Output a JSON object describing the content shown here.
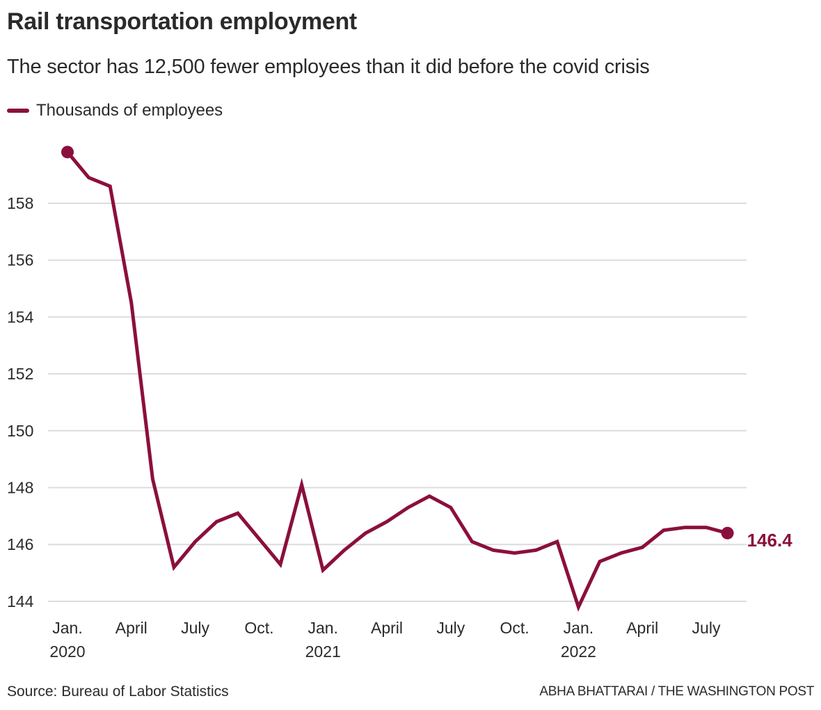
{
  "header": {
    "title": "Rail transportation employment",
    "subtitle": "The sector has 12,500 fewer employees than it did before the covid crisis"
  },
  "legend": {
    "label": "Thousands of employees",
    "color": "#8b0f3d"
  },
  "footer": {
    "source": "Source: Bureau of Labor Statistics",
    "credit": "ABHA BHATTARAI / THE WASHINGTON POST"
  },
  "chart_data": {
    "type": "line",
    "title": "Rail transportation employment",
    "subtitle": "The sector has 12,500 fewer employees than it did before the covid crisis",
    "xlabel": "",
    "ylabel": "Thousands of employees",
    "ylim": [
      143.6,
      160.0
    ],
    "yticks": [
      144,
      146,
      148,
      150,
      152,
      154,
      156,
      158
    ],
    "grid": true,
    "legend_position": "top-left",
    "line_color": "#8b0f3d",
    "x": [
      "2020-01",
      "2020-02",
      "2020-03",
      "2020-04",
      "2020-05",
      "2020-06",
      "2020-07",
      "2020-08",
      "2020-09",
      "2020-10",
      "2020-11",
      "2020-12",
      "2021-01",
      "2021-02",
      "2021-03",
      "2021-04",
      "2021-05",
      "2021-06",
      "2021-07",
      "2021-08",
      "2021-09",
      "2021-10",
      "2021-11",
      "2021-12",
      "2022-01",
      "2022-02",
      "2022-03",
      "2022-04",
      "2022-05",
      "2022-06",
      "2022-07",
      "2022-08"
    ],
    "series": [
      {
        "name": "Thousands of employees",
        "values": [
          159.8,
          158.9,
          158.6,
          154.5,
          148.3,
          145.2,
          146.1,
          146.8,
          147.1,
          146.2,
          145.3,
          148.1,
          145.1,
          145.8,
          146.4,
          146.8,
          147.3,
          147.7,
          147.3,
          146.1,
          145.8,
          145.7,
          145.8,
          146.1,
          143.8,
          145.4,
          145.7,
          145.9,
          146.5,
          146.6,
          146.6,
          146.4
        ]
      }
    ],
    "xticks": [
      {
        "index": 0,
        "label": "Jan.",
        "year": "2020"
      },
      {
        "index": 3,
        "label": "April",
        "year": ""
      },
      {
        "index": 6,
        "label": "July",
        "year": ""
      },
      {
        "index": 9,
        "label": "Oct.",
        "year": ""
      },
      {
        "index": 12,
        "label": "Jan.",
        "year": "2021"
      },
      {
        "index": 15,
        "label": "April",
        "year": ""
      },
      {
        "index": 18,
        "label": "July",
        "year": ""
      },
      {
        "index": 21,
        "label": "Oct.",
        "year": ""
      },
      {
        "index": 24,
        "label": "Jan.",
        "year": "2022"
      },
      {
        "index": 27,
        "label": "April",
        "year": ""
      },
      {
        "index": 30,
        "label": "July",
        "year": ""
      }
    ],
    "annotations": [
      {
        "index": 31,
        "text": "146.4"
      }
    ],
    "endpoint_markers": [
      0,
      31
    ]
  }
}
